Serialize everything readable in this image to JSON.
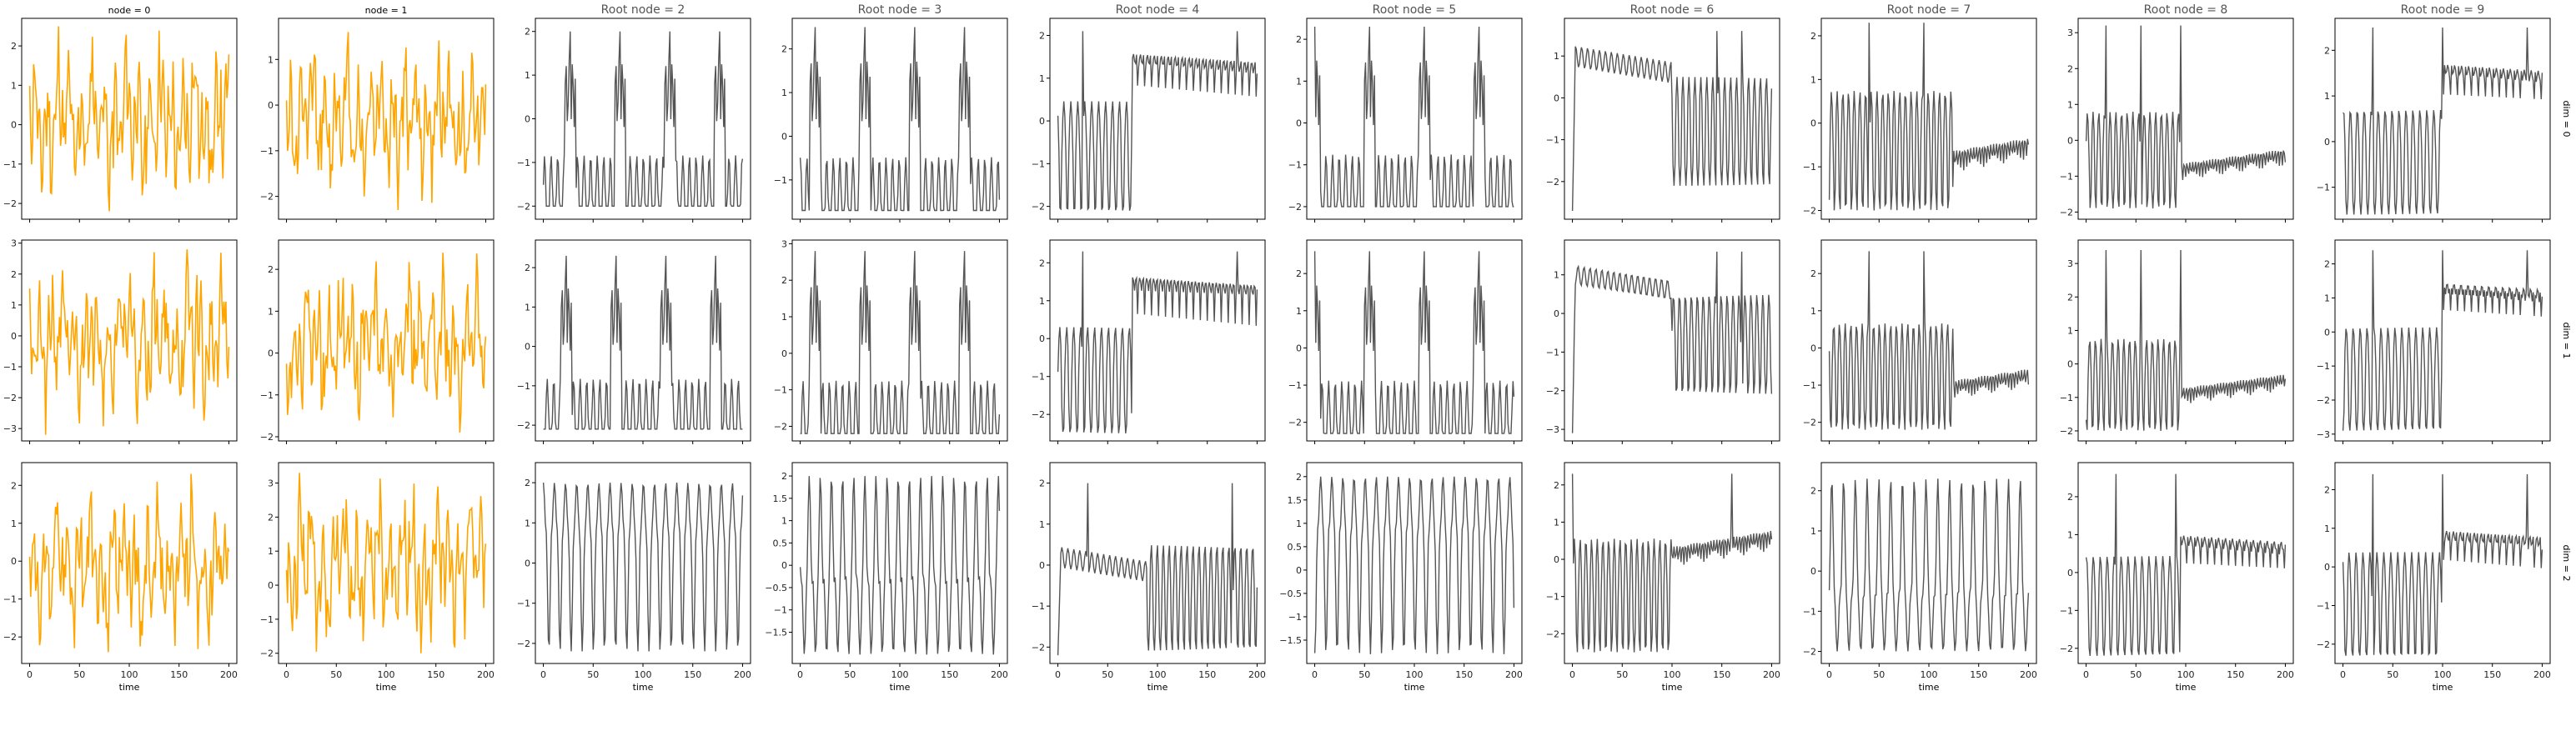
{
  "chart_data": {
    "type": "line",
    "layout": "grid",
    "rows": 3,
    "cols": 10,
    "xlabel": "time",
    "xlim": [
      -8,
      208
    ],
    "xticks": [
      0,
      50,
      100,
      150,
      200
    ],
    "column_titles": [
      "node = 0",
      "node = 1",
      "Root node = 2",
      "Root node = 3",
      "Root node = 4",
      "Root node = 5",
      "Root node = 6",
      "Root node = 7",
      "Root node = 8",
      "Root node = 9"
    ],
    "row_labels": [
      "dim = 0",
      "dim = 1",
      "dim = 2"
    ],
    "colors": {
      "node": "#ffa500",
      "root": "#555555"
    },
    "n_points": 201,
    "panels": [
      {
        "row": 0,
        "col": 0,
        "ylim": [
          -2.4,
          2.7
        ],
        "yticks": [
          -2,
          -1,
          0,
          1,
          2
        ],
        "regime": "chaotic",
        "seed": 11,
        "ymin": -2.2,
        "ymax": 2.5
      },
      {
        "row": 0,
        "col": 1,
        "ylim": [
          -2.5,
          1.9
        ],
        "yticks": [
          -2,
          -1,
          0,
          1
        ],
        "regime": "chaotic",
        "seed": 12,
        "ymin": -2.3,
        "ymax": 1.6
      },
      {
        "row": 0,
        "col": 2,
        "ylim": [
          -2.3,
          2.3
        ],
        "yticks": [
          -2,
          -1,
          0,
          1,
          2
        ],
        "regime": "spike",
        "seed": 13,
        "ymin": -2.0,
        "ymax": 2.0,
        "period": 50,
        "offset": -2
      },
      {
        "row": 0,
        "col": 3,
        "ylim": [
          -1.9,
          2.7
        ],
        "yticks": [
          -1,
          0,
          1,
          2
        ],
        "regime": "spike",
        "seed": 14,
        "ymin": -1.7,
        "ymax": 2.5,
        "period": 50,
        "offset": 10
      },
      {
        "row": 0,
        "col": 4,
        "ylim": [
          -2.3,
          2.4
        ],
        "yticks": [
          -2,
          -1,
          0,
          1,
          2
        ],
        "regime": "switch",
        "seed": 15,
        "ymin": -2.1,
        "ymax": 2.1,
        "switch_at": 75,
        "spike_at": [
          25,
          180
        ],
        "step_level": 1.2
      },
      {
        "row": 0,
        "col": 5,
        "ylim": [
          -2.3,
          2.5
        ],
        "yticks": [
          -2,
          -1,
          0,
          1,
          2
        ],
        "regime": "spike",
        "seed": 16,
        "ymin": -2.0,
        "ymax": 2.3,
        "period": 55,
        "offset": 25
      },
      {
        "row": 0,
        "col": 6,
        "ylim": [
          -2.9,
          1.9
        ],
        "yticks": [
          -2,
          -1,
          0,
          1
        ],
        "regime": "twophase",
        "seed": 17,
        "ymin": -2.7,
        "ymax": 1.6,
        "switch_at": 100,
        "spike_at": [
          145,
          170
        ],
        "step_level": 1.0
      },
      {
        "row": 0,
        "col": 7,
        "ylim": [
          -2.2,
          2.4
        ],
        "yticks": [
          -2,
          -1,
          0,
          1,
          2
        ],
        "regime": "decay",
        "seed": 18,
        "ymin": -2.0,
        "ymax": 2.3,
        "switch_at": 125,
        "spike_at": [
          40,
          95
        ],
        "step_level": -1.2
      },
      {
        "row": 0,
        "col": 8,
        "ylim": [
          -2.2,
          3.4
        ],
        "yticks": [
          -2,
          -1,
          0,
          1,
          2,
          3
        ],
        "regime": "decay",
        "seed": 19,
        "ymin": -1.9,
        "ymax": 3.2,
        "switch_at": 95,
        "spike_at": [
          20,
          55,
          95
        ],
        "step_level": -1.3
      },
      {
        "row": 0,
        "col": 9,
        "ylim": [
          -1.7,
          2.7
        ],
        "yticks": [
          -1,
          0,
          1,
          2
        ],
        "regime": "switch",
        "seed": 20,
        "ymin": -1.6,
        "ymax": 2.5,
        "switch_at": 100,
        "spike_at": [
          30,
          100,
          185
        ],
        "step_level": 1.2
      },
      {
        "row": 1,
        "col": 0,
        "ylim": [
          -3.4,
          3.1
        ],
        "yticks": [
          -3,
          -2,
          -1,
          0,
          1,
          2,
          3
        ],
        "regime": "chaotic",
        "seed": 21,
        "ymin": -3.2,
        "ymax": 2.8
      },
      {
        "row": 1,
        "col": 1,
        "ylim": [
          -2.1,
          2.7
        ],
        "yticks": [
          -2,
          -1,
          0,
          1,
          2
        ],
        "regime": "chaotic",
        "seed": 22,
        "ymin": -1.9,
        "ymax": 2.4
      },
      {
        "row": 1,
        "col": 2,
        "ylim": [
          -2.4,
          2.7
        ],
        "yticks": [
          -2,
          -1,
          0,
          1,
          2
        ],
        "regime": "spike",
        "seed": 23,
        "ymin": -2.1,
        "ymax": 2.3,
        "period": 50,
        "offset": 2
      },
      {
        "row": 1,
        "col": 3,
        "ylim": [
          -2.4,
          3.1
        ],
        "yticks": [
          -2,
          -1,
          0,
          1,
          2,
          3
        ],
        "regime": "spike",
        "seed": 24,
        "ymin": -2.2,
        "ymax": 2.8,
        "period": 50,
        "offset": 10
      },
      {
        "row": 1,
        "col": 4,
        "ylim": [
          -2.7,
          2.6
        ],
        "yticks": [
          -2,
          -1,
          0,
          1,
          2
        ],
        "regime": "switch",
        "seed": 25,
        "ymin": -2.5,
        "ymax": 2.3,
        "switch_at": 75,
        "spike_at": [
          25,
          180
        ],
        "step_level": 1.3
      },
      {
        "row": 1,
        "col": 5,
        "ylim": [
          -2.5,
          2.9
        ],
        "yticks": [
          -2,
          -1,
          0,
          1,
          2
        ],
        "regime": "spike",
        "seed": 26,
        "ymin": -2.3,
        "ymax": 2.6,
        "period": 55,
        "offset": 25
      },
      {
        "row": 1,
        "col": 6,
        "ylim": [
          -3.3,
          1.9
        ],
        "yticks": [
          -3,
          -2,
          -1,
          0,
          1
        ],
        "regime": "twophase",
        "seed": 27,
        "ymin": -3.1,
        "ymax": 1.6,
        "switch_at": 100,
        "spike_at": [
          145,
          170
        ],
        "step_level": 1.0
      },
      {
        "row": 1,
        "col": 7,
        "ylim": [
          -2.5,
          2.9
        ],
        "yticks": [
          -2,
          -1,
          0,
          1,
          2
        ],
        "regime": "decay",
        "seed": 28,
        "ymin": -2.2,
        "ymax": 2.6,
        "switch_at": 125,
        "spike_at": [
          40,
          95
        ],
        "step_level": -1.3
      },
      {
        "row": 1,
        "col": 8,
        "ylim": [
          -2.3,
          3.7
        ],
        "yticks": [
          -2,
          -1,
          0,
          1,
          2,
          3
        ],
        "regime": "decay",
        "seed": 29,
        "ymin": -2.0,
        "ymax": 3.4,
        "switch_at": 95,
        "spike_at": [
          20,
          55,
          95
        ],
        "step_level": -1.3
      },
      {
        "row": 1,
        "col": 9,
        "ylim": [
          -3.2,
          2.7
        ],
        "yticks": [
          -3,
          -2,
          -1,
          0,
          1,
          2
        ],
        "regime": "switch",
        "seed": 30,
        "ymin": -2.9,
        "ymax": 2.4,
        "switch_at": 100,
        "spike_at": [
          30,
          100,
          185
        ],
        "step_level": 1.2
      },
      {
        "row": 2,
        "col": 0,
        "ylim": [
          -2.7,
          2.6
        ],
        "yticks": [
          -2,
          -1,
          0,
          1,
          2
        ],
        "regime": "chaotic",
        "seed": 31,
        "ymin": -2.4,
        "ymax": 2.3
      },
      {
        "row": 2,
        "col": 1,
        "ylim": [
          -2.3,
          3.6
        ],
        "yticks": [
          -2,
          -1,
          0,
          1,
          2,
          3
        ],
        "regime": "chaotic",
        "seed": 32,
        "ymin": -2.0,
        "ymax": 3.3
      },
      {
        "row": 2,
        "col": 2,
        "ylim": [
          -2.5,
          2.5
        ],
        "yticks": [
          -2,
          -1,
          0,
          1,
          2
        ],
        "regime": "periodic",
        "seed": 33,
        "ymin": -2.2,
        "ymax": 2.0,
        "cycles": 18
      },
      {
        "row": 2,
        "col": 3,
        "ylim": [
          -2.2,
          2.3
        ],
        "yticks": [
          -1.5,
          -1,
          -0.5,
          0,
          0.5,
          1,
          1.5,
          2
        ],
        "regime": "periodic",
        "seed": 34,
        "ymin": -2.0,
        "ymax": 2.0,
        "cycles": 18
      },
      {
        "row": 2,
        "col": 4,
        "ylim": [
          -2.4,
          2.5
        ],
        "yticks": [
          -2,
          -1,
          0,
          1,
          2
        ],
        "regime": "twophase",
        "seed": 35,
        "ymin": -2.2,
        "ymax": 2.0,
        "switch_at": 90,
        "spike_at": [
          30,
          175
        ],
        "step_level": 0.2
      },
      {
        "row": 2,
        "col": 5,
        "ylim": [
          -2.0,
          2.3
        ],
        "yticks": [
          -1.5,
          -1,
          -0.5,
          0,
          0.5,
          1,
          1.5,
          2
        ],
        "regime": "periodic",
        "seed": 36,
        "ymin": -1.8,
        "ymax": 2.0,
        "cycles": 18
      },
      {
        "row": 2,
        "col": 6,
        "ylim": [
          -2.8,
          2.6
        ],
        "yticks": [
          -2,
          -1,
          0,
          1,
          2
        ],
        "regime": "decay",
        "seed": 37,
        "ymin": -2.5,
        "ymax": 2.3,
        "switch_at": 100,
        "spike_at": [
          0,
          160
        ],
        "step_level": 0.0
      },
      {
        "row": 2,
        "col": 7,
        "ylim": [
          -2.3,
          2.7
        ],
        "yticks": [
          -2,
          -1,
          0,
          1,
          2
        ],
        "regime": "periodic",
        "seed": 38,
        "ymin": -2.0,
        "ymax": 2.3,
        "cycles": 17
      },
      {
        "row": 2,
        "col": 8,
        "ylim": [
          -2.4,
          2.9
        ],
        "yticks": [
          -2,
          -1,
          0,
          1,
          2
        ],
        "regime": "switch",
        "seed": 39,
        "ymin": -2.2,
        "ymax": 2.6,
        "switch_at": 95,
        "spike_at": [
          30,
          90
        ],
        "step_level": 0.6
      },
      {
        "row": 2,
        "col": 9,
        "ylim": [
          -2.5,
          2.7
        ],
        "yticks": [
          -2,
          -1,
          0,
          1,
          2
        ],
        "regime": "switch",
        "seed": 40,
        "ymin": -2.3,
        "ymax": 2.4,
        "switch_at": 100,
        "spike_at": [
          30,
          100,
          185
        ],
        "step_level": 0.6
      }
    ]
  }
}
